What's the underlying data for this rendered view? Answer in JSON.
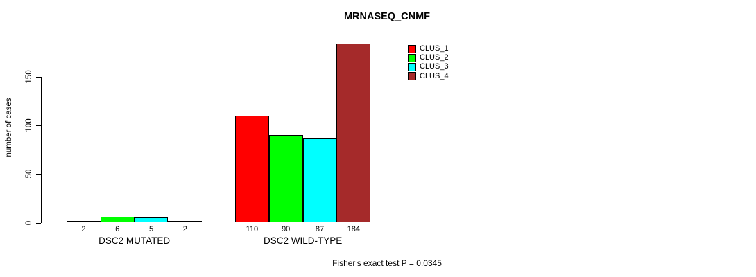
{
  "title": "MRNASEQ_CNMF",
  "footer": "Fisher's exact test P = 0.0345",
  "chart_data": {
    "type": "bar",
    "title": "MRNASEQ_CNMF",
    "xlabel": "",
    "ylabel": "number of cases",
    "categories": [
      "DSC2 MUTATED",
      "DSC2 WILD-TYPE"
    ],
    "series": [
      {
        "name": "CLUS_1",
        "color": "#FF0000",
        "values": [
          2,
          110
        ]
      },
      {
        "name": "CLUS_2",
        "color": "#00FF00",
        "values": [
          6,
          90
        ]
      },
      {
        "name": "CLUS_3",
        "color": "#00FFFF",
        "values": [
          5,
          87
        ]
      },
      {
        "name": "CLUS_4",
        "color": "#A52A2A",
        "values": [
          2,
          184
        ]
      }
    ],
    "bar_value_labels": [
      [
        "2",
        "6",
        "5",
        "2"
      ],
      [
        "110",
        "90",
        "87",
        "184"
      ]
    ],
    "yticks": [
      0,
      50,
      100,
      150
    ],
    "ylim": [
      0,
      184
    ],
    "grid": false,
    "legend_position": "top-right",
    "annotation": "Fisher's exact test P = 0.0345"
  },
  "legend": {
    "items": [
      {
        "label": "CLUS_1",
        "color": "#FF0000"
      },
      {
        "label": "CLUS_2",
        "color": "#00FF00"
      },
      {
        "label": "CLUS_3",
        "color": "#00FFFF"
      },
      {
        "label": "CLUS_4",
        "color": "#A52A2A"
      }
    ]
  }
}
